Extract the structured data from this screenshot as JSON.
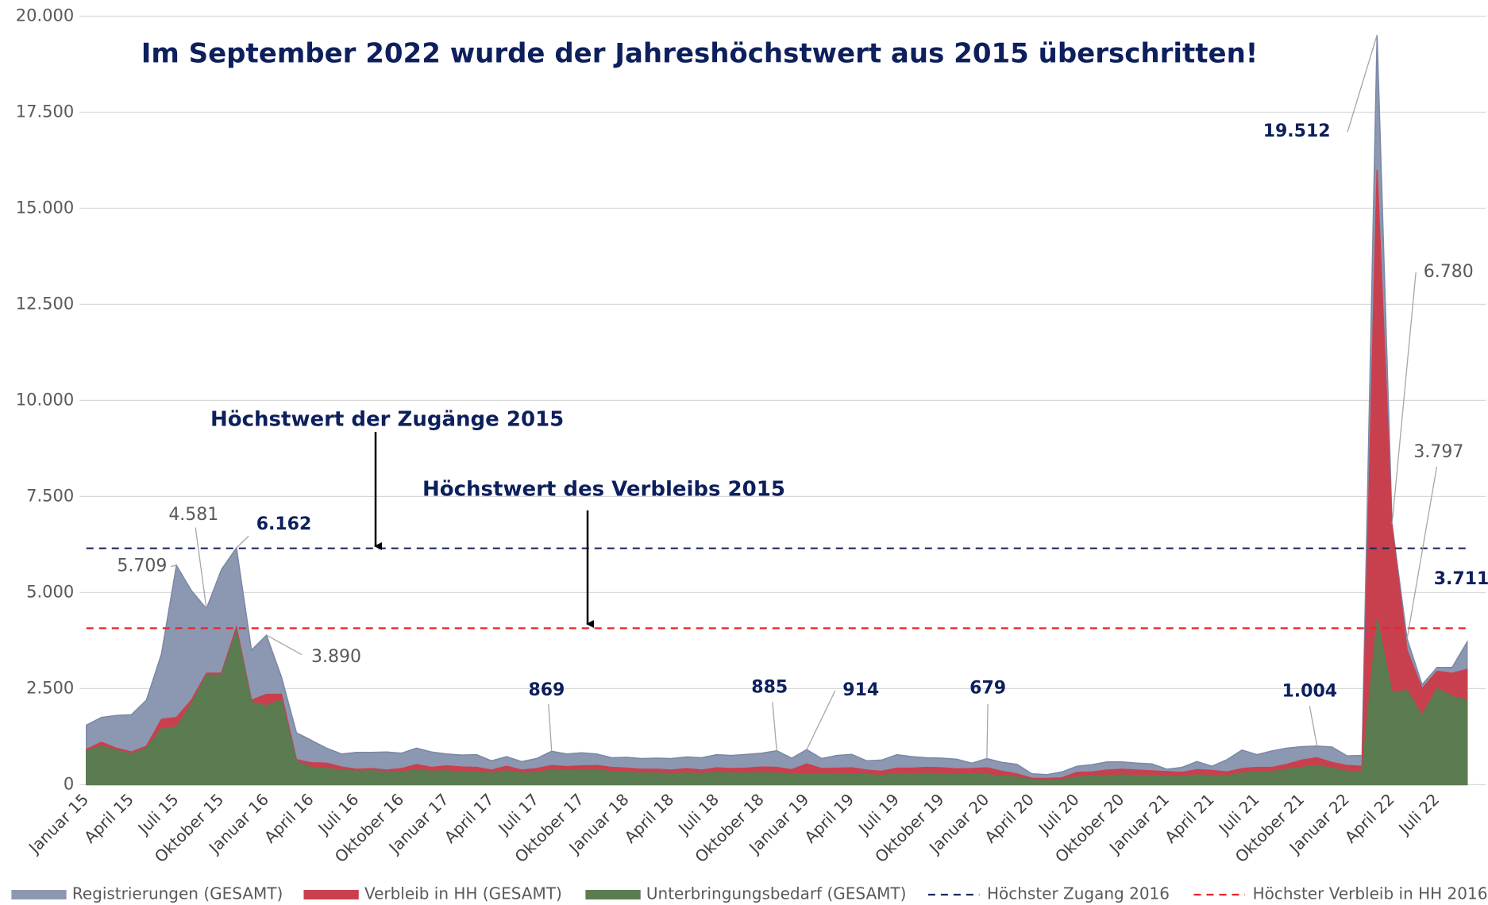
{
  "chart_data": {
    "type": "area",
    "title": "Im September 2022 wurde der Jahreshöchstwert aus 2015 überschritten!",
    "annotations": [
      "Höchstwert der Zugänge 2015",
      "Höchstwert des Verbleibs 2015"
    ],
    "categories": [
      "Januar 15",
      null,
      null,
      "April 15",
      null,
      null,
      "Juli 15",
      null,
      null,
      "Oktober 15",
      null,
      null,
      "Januar 16",
      null,
      null,
      "April 16",
      null,
      null,
      "Juli 16",
      null,
      null,
      "Oktober 16",
      null,
      null,
      "Januar 17",
      null,
      null,
      "April 17",
      null,
      null,
      "Juli 17",
      null,
      null,
      "Oktober 17",
      null,
      null,
      "Januar 18",
      null,
      null,
      "April 18",
      null,
      null,
      "Juli 18",
      null,
      null,
      "Oktober 18",
      null,
      null,
      "Januar 19",
      null,
      null,
      "April 19",
      null,
      null,
      "Juli 19",
      null,
      null,
      "Oktober 19",
      null,
      null,
      "Januar 20",
      null,
      null,
      "April 20",
      null,
      null,
      "Juli 20",
      null,
      null,
      "Oktober 20",
      null,
      null,
      "Januar 21",
      null,
      null,
      "April 21",
      null,
      null,
      "Juli 21",
      null,
      null,
      "Oktober 21",
      null,
      null,
      "Januar 22",
      null,
      null,
      "April 22",
      null,
      null,
      "Juli 22",
      null,
      null
    ],
    "series": [
      {
        "name": "Registrierungen (GESAMT)",
        "color": "#8c98b2",
        "values": [
          1550,
          1750,
          1800,
          1820,
          2200,
          3400,
          5709,
          5050,
          4581,
          5600,
          6162,
          3500,
          3890,
          2800,
          1350,
          1150,
          950,
          800,
          840,
          840,
          850,
          820,
          950,
          850,
          800,
          770,
          780,
          620,
          730,
          600,
          680,
          869,
          800,
          830,
          800,
          700,
          710,
          680,
          690,
          680,
          720,
          700,
          780,
          760,
          790,
          820,
          885,
          690,
          914,
          680,
          760,
          790,
          620,
          640,
          780,
          730,
          700,
          690,
          660,
          560,
          679,
          580,
          530,
          280,
          260,
          330,
          480,
          520,
          590,
          590,
          560,
          540,
          400,
          450,
          600,
          480,
          650,
          900,
          780,
          880,
          950,
          990,
          1004,
          980,
          750,
          760,
          19512,
          6780,
          3797,
          2600,
          3050,
          3050,
          3711
        ],
        "value_labels": [
          null,
          null,
          null,
          null,
          null,
          null,
          "5.709",
          null,
          "4.581",
          null,
          "6.162",
          null,
          "3.890",
          null,
          null,
          null,
          null,
          null,
          null,
          null,
          null,
          null,
          null,
          null,
          null,
          null,
          null,
          null,
          null,
          null,
          null,
          "869",
          null,
          null,
          null,
          null,
          null,
          null,
          null,
          null,
          null,
          null,
          null,
          null,
          null,
          null,
          "885",
          null,
          "914",
          null,
          null,
          null,
          null,
          null,
          null,
          null,
          null,
          null,
          null,
          null,
          "679",
          null,
          null,
          null,
          null,
          null,
          null,
          null,
          null,
          null,
          null,
          null,
          null,
          null,
          null,
          null,
          null,
          null,
          null,
          null,
          null,
          null,
          "1.004",
          null,
          null,
          null,
          "19.512",
          "6.780",
          "3.797",
          null,
          null,
          null,
          "3.711"
        ]
      },
      {
        "name": "Verbleib in HH (GESAMT)",
        "color": "#c8404e",
        "values": [
          920,
          1100,
          950,
          850,
          1000,
          1700,
          1750,
          2200,
          2900,
          2900,
          4100,
          2200,
          2350,
          2350,
          650,
          570,
          560,
          460,
          400,
          420,
          380,
          420,
          520,
          450,
          490,
          460,
          450,
          380,
          480,
          380,
          420,
          500,
          470,
          490,
          500,
          450,
          430,
          400,
          400,
          380,
          420,
          380,
          440,
          420,
          430,
          460,
          450,
          390,
          540,
          420,
          430,
          440,
          380,
          350,
          430,
          430,
          450,
          440,
          410,
          420,
          440,
          350,
          280,
          170,
          160,
          180,
          320,
          330,
          380,
          400,
          380,
          360,
          340,
          320,
          390,
          370,
          330,
          420,
          450,
          450,
          530,
          640,
          700,
          580,
          500,
          480,
          16000,
          6700,
          3500,
          2500,
          2950,
          2900,
          3000
        ]
      },
      {
        "name": "Unterbringungsbedarf (GESAMT)",
        "color": "#5b7b50",
        "values": [
          880,
          1000,
          900,
          800,
          950,
          1450,
          1500,
          2100,
          2850,
          2850,
          4000,
          2150,
          2050,
          2200,
          600,
          450,
          420,
          380,
          350,
          360,
          340,
          330,
          380,
          350,
          360,
          330,
          320,
          300,
          360,
          300,
          320,
          380,
          360,
          370,
          380,
          340,
          320,
          300,
          300,
          290,
          300,
          290,
          320,
          300,
          300,
          310,
          300,
          280,
          280,
          270,
          280,
          280,
          260,
          240,
          280,
          280,
          290,
          280,
          270,
          260,
          260,
          220,
          200,
          130,
          120,
          130,
          200,
          220,
          240,
          250,
          240,
          230,
          220,
          210,
          250,
          240,
          230,
          300,
          330,
          340,
          400,
          450,
          500,
          430,
          350,
          340,
          4300,
          2400,
          2450,
          1800,
          2500,
          2300,
          2200
        ]
      }
    ],
    "reference_lines": [
      {
        "name": "Höchster Zugang 2016",
        "color": "#1b2a5a",
        "value": 6150
      },
      {
        "name": "Höchster Verbleib in HH 2016",
        "color": "#e8262a",
        "value": 4070
      }
    ],
    "ylim": [
      0,
      20000
    ],
    "yticks": [
      0,
      {
        "value": 2500,
        "label": "2.500"
      },
      {
        "value": 5000,
        "label": "5.000"
      },
      {
        "value": 7500,
        "label": "7.500"
      },
      {
        "value": 10000,
        "label": "10.000"
      },
      {
        "value": 12500,
        "label": "12.500"
      },
      {
        "value": 15000,
        "label": "15.000"
      },
      {
        "value": 17500,
        "label": "17.500"
      },
      {
        "value": 20000,
        "label": "20.000"
      }
    ],
    "grid": true
  }
}
